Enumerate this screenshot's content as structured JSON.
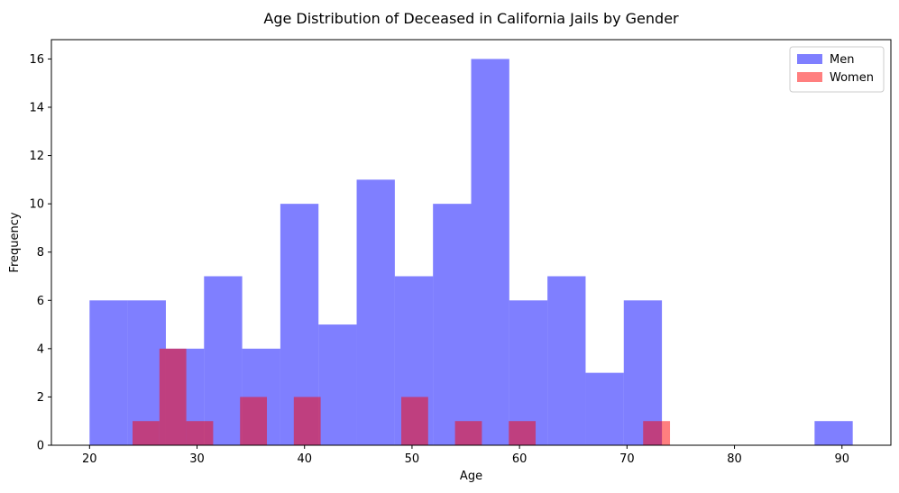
{
  "chart_data": {
    "type": "bar",
    "histogram": true,
    "title": "Age Distribution of Deceased in California Jails by Gender",
    "xlabel": "Age",
    "ylabel": "Frequency",
    "xlim": [
      16.45,
      94.55
    ],
    "ylim": [
      0,
      16.8
    ],
    "xticks": [
      20,
      30,
      40,
      50,
      60,
      70,
      80,
      90
    ],
    "yticks": [
      0,
      2,
      4,
      6,
      8,
      10,
      12,
      14,
      16
    ],
    "grid": false,
    "legend": "top-right",
    "series": [
      {
        "name": "Men",
        "color": "#0000ff",
        "opacity": 0.5,
        "bin_edges": [
          20.0,
          23.55,
          27.1,
          30.65,
          34.2,
          37.75,
          41.3,
          44.85,
          48.4,
          51.95,
          55.5,
          59.05,
          62.6,
          66.15,
          69.7,
          73.25,
          76.8,
          80.35,
          83.9,
          87.45,
          91.0
        ],
        "values": [
          6,
          6,
          4,
          7,
          4,
          10,
          5,
          11,
          7,
          10,
          16,
          6,
          7,
          3,
          6,
          0,
          0,
          0,
          0,
          1
        ]
      },
      {
        "name": "Women",
        "color": "#ff0000",
        "opacity": 0.5,
        "bin_edges": [
          24.0,
          26.5,
          29.0,
          31.5,
          34.0,
          36.5,
          39.0,
          41.5,
          44.0,
          46.5,
          49.0,
          51.5,
          54.0,
          56.5,
          59.0,
          61.5,
          64.0,
          66.5,
          69.0,
          71.5,
          74.0
        ],
        "values": [
          1,
          4,
          1,
          0,
          2,
          0,
          2,
          0,
          0,
          0,
          2,
          0,
          1,
          0,
          1,
          0,
          0,
          0,
          0,
          1
        ]
      }
    ]
  }
}
